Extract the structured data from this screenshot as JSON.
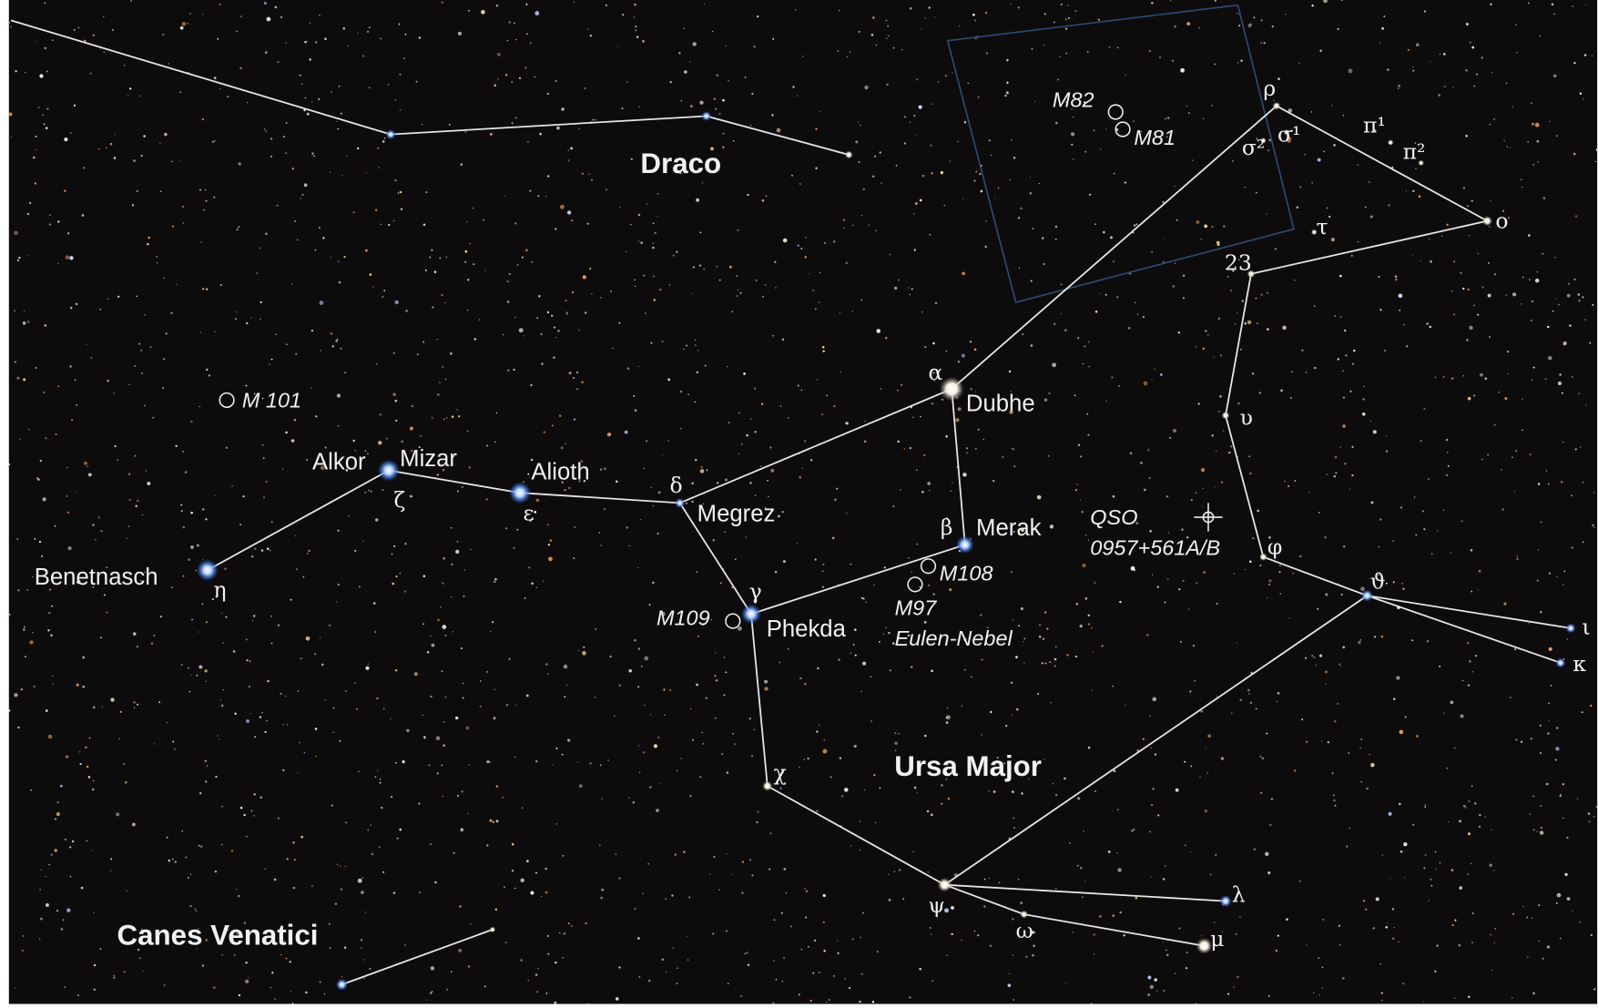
{
  "constellations": [
    "Draco",
    "Ursa Major",
    "Canes Venatici"
  ],
  "stars": [
    "Alkor",
    "Mizar",
    "Alioth",
    "Megrez",
    "Dubhe",
    "Merak",
    "Phekda",
    "Benetnasch"
  ],
  "greek": [
    "α",
    "ζ",
    "ε",
    "η",
    "δ",
    "γ",
    "β",
    "χ",
    "ψ",
    "ω",
    "λ",
    "μ",
    "ρ",
    "σ²",
    "σ¹",
    "π¹",
    "π²",
    "τ",
    "o",
    "23",
    "υ",
    "φ",
    "ϑ",
    "ι",
    "κ"
  ],
  "objects": [
    "M 101",
    "M82",
    "M81",
    "M108",
    "M97",
    "Eulen-Nebel",
    "M109",
    "QSO",
    "0957+561A/B"
  ]
}
